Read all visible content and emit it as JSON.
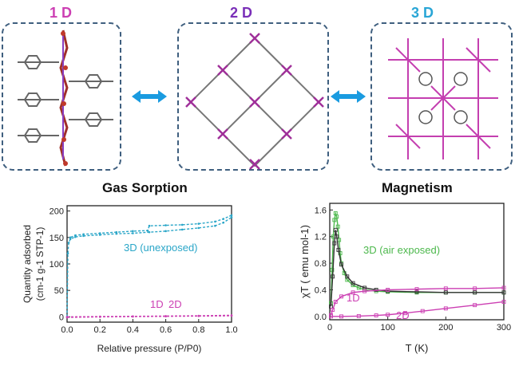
{
  "dimensions": {
    "one": "1 D",
    "two": "2 D",
    "three": "3 D"
  },
  "colors": {
    "one": "#cc3fb3",
    "two": "#7a2fb8",
    "three": "#2aa6d6",
    "arrow": "#1a9be0",
    "blue": "#2aa6c8",
    "magenta": "#cc3fb3",
    "green": "#4cb84c",
    "dark": "#333333"
  },
  "charts": [
    {
      "title": "Gas Sorption",
      "chart_data": {
        "type": "line",
        "title": "Gas Sorption",
        "xlabel": "Relative pressure (P/P0)",
        "ylabel": "Quantity adsorbed (cm-1 g-1 STP-1)",
        "xlim": [
          0,
          1.0
        ],
        "ylim": [
          -10,
          210
        ],
        "xticks": [
          0.0,
          0.2,
          0.4,
          0.6,
          0.8,
          1.0
        ],
        "yticks": [
          0,
          50,
          100,
          150,
          200
        ],
        "series": [
          {
            "name": "3D (unexposed)",
            "color": "#2aa6c8",
            "x": [
              0.0,
              0.005,
              0.01,
              0.02,
              0.05,
              0.1,
              0.2,
              0.3,
              0.4,
              0.5,
              0.6,
              0.7,
              0.8,
              0.9,
              0.95,
              1.0
            ],
            "y": [
              0,
              120,
              140,
              147,
              151,
              153,
              155,
              157,
              158,
              160,
              162,
              165,
              168,
              172,
              178,
              188
            ]
          },
          {
            "name": "3D (unexposed) desorption",
            "color": "#2aa6c8",
            "x": [
              1.0,
              0.95,
              0.9,
              0.8,
              0.7,
              0.6,
              0.5,
              0.49,
              0.4,
              0.3,
              0.2,
              0.1,
              0.05,
              0.02
            ],
            "y": [
              192,
              185,
              180,
              176,
              174,
              173,
              172,
              163,
              162,
              160,
              158,
              156,
              154,
              150
            ]
          },
          {
            "name": "1D",
            "color": "#cc3fb3",
            "x": [
              0.0,
              0.2,
              0.4,
              0.6,
              0.8,
              1.0
            ],
            "y": [
              0,
              0.5,
              1,
              1.5,
              2,
              3
            ]
          },
          {
            "name": "2D",
            "color": "#cc3fb3",
            "x": [
              0.0,
              0.2,
              0.4,
              0.6,
              0.8,
              1.0
            ],
            "y": [
              -1,
              0,
              0.5,
              1,
              1.5,
              2
            ]
          }
        ],
        "annotations": [
          "3D (unexposed)",
          "1D",
          "2D"
        ]
      }
    },
    {
      "title": "Magnetism",
      "chart_data": {
        "type": "scatter",
        "title": "Magnetism",
        "xlabel": "T (K)",
        "ylabel": "χT ( emu mol-1)",
        "xlim": [
          0,
          300
        ],
        "ylim": [
          -0.05,
          1.7
        ],
        "xticks": [
          0,
          100,
          200,
          300
        ],
        "yticks": [
          0.0,
          0.4,
          0.8,
          1.2,
          1.6
        ],
        "series": [
          {
            "name": "3D (air exposed)",
            "color": "#4cb84c",
            "x": [
              2,
              4,
              6,
              8,
              10,
              12,
              14,
              16,
              18,
              20,
              25,
              30,
              40,
              50,
              60,
              80,
              100,
              150,
              200,
              250,
              300
            ],
            "y": [
              0.2,
              0.7,
              1.2,
              1.45,
              1.55,
              1.5,
              1.35,
              1.15,
              0.95,
              0.8,
              0.65,
              0.55,
              0.47,
              0.43,
              0.4,
              0.38,
              0.37,
              0.36,
              0.36,
              0.36,
              0.36
            ]
          },
          {
            "name": "3D (air exposed) dark",
            "color": "#333333",
            "x": [
              2,
              5,
              8,
              10,
              12,
              15,
              20,
              30,
              40,
              60,
              80,
              100,
              150,
              200,
              250,
              300
            ],
            "y": [
              0.15,
              0.6,
              1.1,
              1.3,
              1.2,
              1.0,
              0.78,
              0.6,
              0.5,
              0.43,
              0.4,
              0.38,
              0.37,
              0.36,
              0.36,
              0.36
            ]
          },
          {
            "name": "1D",
            "color": "#cc3fb3",
            "x": [
              2,
              5,
              10,
              20,
              40,
              60,
              100,
              150,
              200,
              250,
              300
            ],
            "y": [
              0.02,
              0.1,
              0.22,
              0.3,
              0.36,
              0.38,
              0.4,
              0.41,
              0.42,
              0.42,
              0.43
            ]
          },
          {
            "name": "2D",
            "color": "#cc3fb3",
            "x": [
              2,
              20,
              50,
              80,
              100,
              130,
              160,
              200,
              250,
              300
            ],
            "y": [
              0.0,
              0.0,
              0.005,
              0.015,
              0.025,
              0.05,
              0.08,
              0.12,
              0.17,
              0.22
            ]
          }
        ],
        "annotations": [
          "3D (air exposed)",
          "1D",
          "2D"
        ]
      }
    }
  ]
}
